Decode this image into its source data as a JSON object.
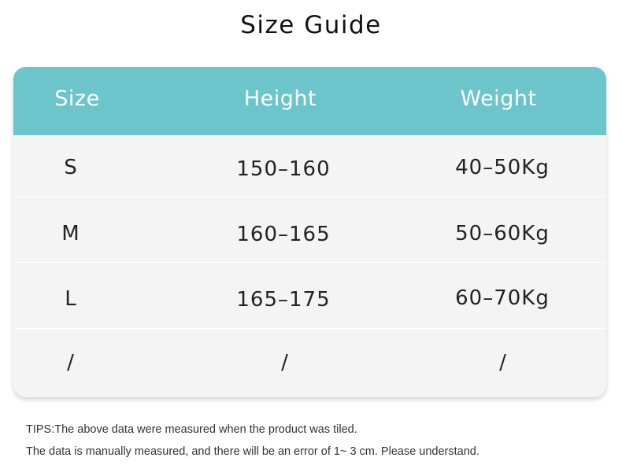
{
  "title": "Size Guide",
  "header_color": "#6cc5ca",
  "table": {
    "headers": [
      "Size",
      "Height",
      "Weight"
    ],
    "rows": [
      [
        "S",
        "150–160",
        "40–50Kg"
      ],
      [
        "M",
        "160–165",
        "50–60Kg"
      ],
      [
        "L",
        "165–175",
        "60–70Kg"
      ],
      [
        "/",
        "/",
        "/"
      ]
    ]
  },
  "tips": [
    "TIPS:The above data were measured when the product was tiled.",
    "The data is manually measured, and there will be an error of 1~ 3 cm. Please understand."
  ]
}
